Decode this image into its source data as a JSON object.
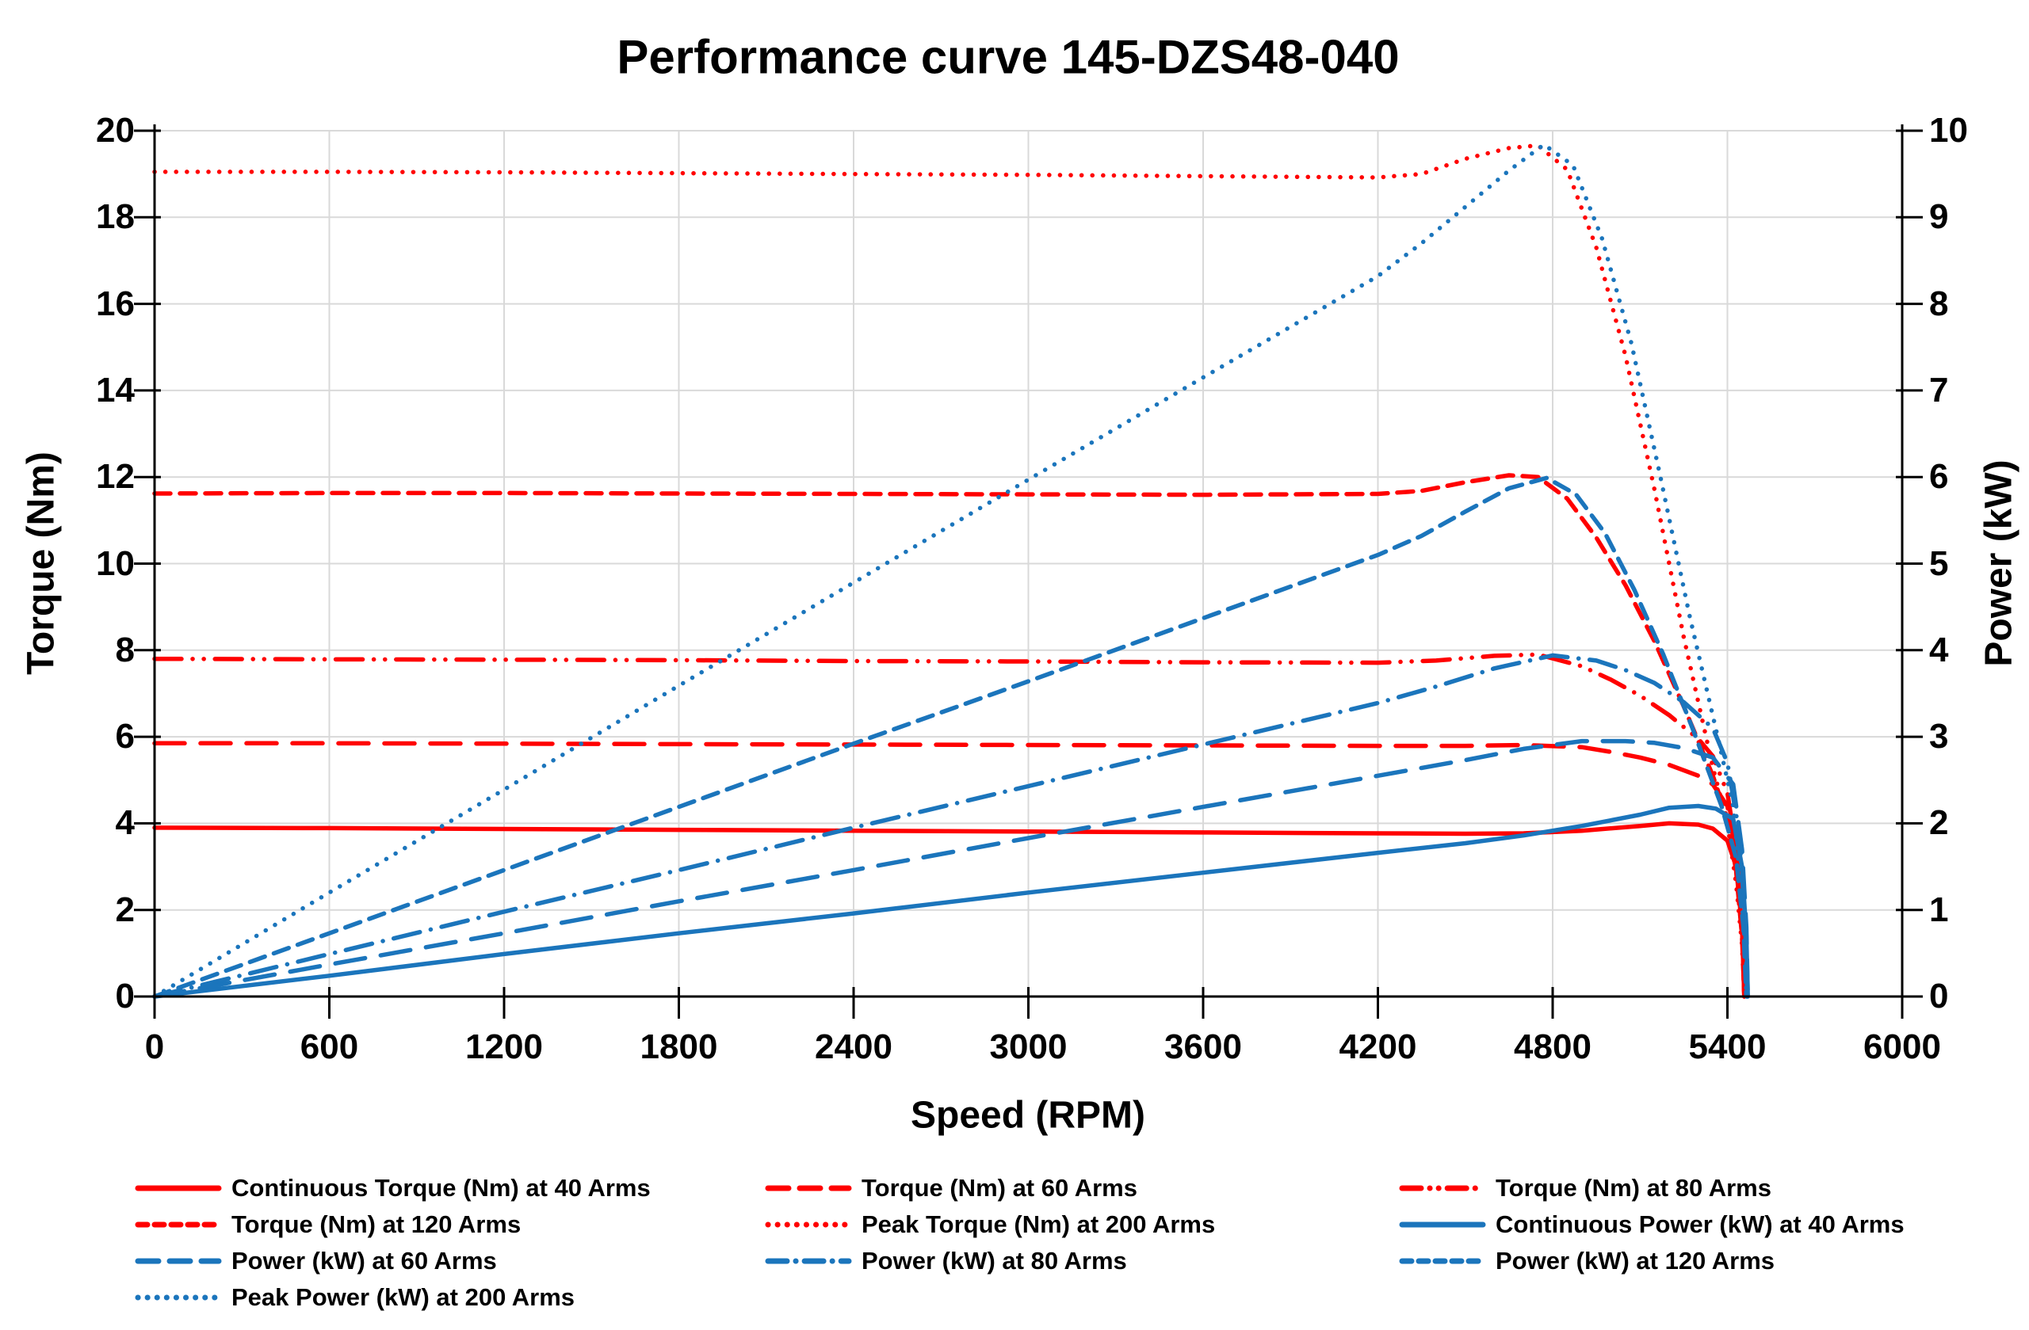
{
  "title": "Performance curve 145-DZS48-040",
  "colors": {
    "red": "#FF0000",
    "blue": "#1B75BC",
    "grid": "#D9D9D9",
    "axis": "#000000",
    "text": "#000000"
  },
  "axes": {
    "x": {
      "title": "Speed (RPM)",
      "min": 0,
      "max": 6000,
      "ticks": [
        "0",
        "600",
        "1200",
        "1800",
        "2400",
        "3000",
        "3600",
        "4200",
        "4800",
        "5400",
        "6000"
      ]
    },
    "y_left": {
      "title": "Torque (Nm)",
      "min": 0,
      "max": 20,
      "ticks": [
        "0",
        "2",
        "4",
        "6",
        "8",
        "10",
        "12",
        "14",
        "16",
        "18",
        "20"
      ]
    },
    "y_right": {
      "title": "Power (kW)",
      "min": 0,
      "max": 10,
      "ticks": [
        "0",
        "1",
        "2",
        "3",
        "4",
        "5",
        "6",
        "7",
        "8",
        "9",
        "10"
      ]
    }
  },
  "chart_data": {
    "type": "line",
    "title": "Performance curve 145-DZS48-040",
    "xlabel": "Speed (RPM)",
    "ylabel_left": "Torque (Nm)",
    "ylabel_right": "Power (kW)",
    "xlim": [
      0,
      6000
    ],
    "ylim_left": [
      0,
      20
    ],
    "ylim_right": [
      0,
      10
    ],
    "grid": true,
    "legend_position": "bottom",
    "series": [
      {
        "name": "Continuous Torque (Nm) at 40 Arms",
        "axis": "left",
        "color": "red",
        "dash": "solid",
        "points": [
          [
            0,
            3.9
          ],
          [
            600,
            3.89
          ],
          [
            1200,
            3.87
          ],
          [
            1800,
            3.85
          ],
          [
            2400,
            3.83
          ],
          [
            3000,
            3.81
          ],
          [
            3600,
            3.79
          ],
          [
            4200,
            3.77
          ],
          [
            4500,
            3.76
          ],
          [
            4700,
            3.77
          ],
          [
            4900,
            3.83
          ],
          [
            5100,
            3.94
          ],
          [
            5200,
            4.0
          ],
          [
            5300,
            3.97
          ],
          [
            5350,
            3.88
          ],
          [
            5400,
            3.6
          ],
          [
            5430,
            3.0
          ],
          [
            5450,
            1.6
          ],
          [
            5458,
            0
          ]
        ]
      },
      {
        "name": "Torque (Nm) at 60 Arms",
        "axis": "left",
        "color": "red",
        "dash": "long-dash",
        "points": [
          [
            0,
            5.85
          ],
          [
            600,
            5.85
          ],
          [
            1200,
            5.84
          ],
          [
            1800,
            5.83
          ],
          [
            2400,
            5.82
          ],
          [
            3000,
            5.81
          ],
          [
            3600,
            5.8
          ],
          [
            4200,
            5.79
          ],
          [
            4500,
            5.79
          ],
          [
            4700,
            5.81
          ],
          [
            4900,
            5.76
          ],
          [
            5000,
            5.65
          ],
          [
            5100,
            5.52
          ],
          [
            5200,
            5.35
          ],
          [
            5300,
            5.1
          ],
          [
            5350,
            4.9
          ],
          [
            5400,
            4.4
          ],
          [
            5430,
            3.3
          ],
          [
            5450,
            1.7
          ],
          [
            5458,
            0
          ]
        ]
      },
      {
        "name": "Torque (Nm) at 80 Arms",
        "axis": "left",
        "color": "red",
        "dash": "dash-dot-dot",
        "points": [
          [
            0,
            7.8
          ],
          [
            600,
            7.79
          ],
          [
            1200,
            7.78
          ],
          [
            1800,
            7.77
          ],
          [
            2400,
            7.75
          ],
          [
            3000,
            7.74
          ],
          [
            3600,
            7.72
          ],
          [
            4200,
            7.71
          ],
          [
            4400,
            7.76
          ],
          [
            4600,
            7.87
          ],
          [
            4750,
            7.9
          ],
          [
            4900,
            7.63
          ],
          [
            5000,
            7.32
          ],
          [
            5100,
            6.95
          ],
          [
            5200,
            6.5
          ],
          [
            5300,
            5.95
          ],
          [
            5350,
            5.55
          ],
          [
            5400,
            4.7
          ],
          [
            5430,
            3.4
          ],
          [
            5450,
            1.8
          ],
          [
            5458,
            0
          ]
        ]
      },
      {
        "name": "Torque (Nm) at 120 Arms",
        "axis": "left",
        "color": "red",
        "dash": "short-dash",
        "points": [
          [
            0,
            11.62
          ],
          [
            600,
            11.63
          ],
          [
            1200,
            11.63
          ],
          [
            1800,
            11.62
          ],
          [
            2400,
            11.61
          ],
          [
            3000,
            11.6
          ],
          [
            3600,
            11.59
          ],
          [
            4200,
            11.61
          ],
          [
            4350,
            11.68
          ],
          [
            4500,
            11.88
          ],
          [
            4650,
            12.04
          ],
          [
            4750,
            12.0
          ],
          [
            4850,
            11.5
          ],
          [
            4950,
            10.6
          ],
          [
            5050,
            9.5
          ],
          [
            5150,
            8.2
          ],
          [
            5250,
            6.7
          ],
          [
            5350,
            5.1
          ],
          [
            5400,
            4.1
          ],
          [
            5430,
            2.9
          ],
          [
            5450,
            1.4
          ],
          [
            5458,
            0
          ]
        ]
      },
      {
        "name": "Peak Torque (Nm) at 200 Arms",
        "axis": "left",
        "color": "red",
        "dash": "dot",
        "points": [
          [
            0,
            19.05
          ],
          [
            600,
            19.05
          ],
          [
            1200,
            19.04
          ],
          [
            1800,
            19.02
          ],
          [
            2400,
            19.0
          ],
          [
            3000,
            18.98
          ],
          [
            3600,
            18.95
          ],
          [
            4200,
            18.92
          ],
          [
            4350,
            19.0
          ],
          [
            4500,
            19.35
          ],
          [
            4650,
            19.6
          ],
          [
            4750,
            19.66
          ],
          [
            4850,
            19.1
          ],
          [
            4950,
            17.3
          ],
          [
            5050,
            14.8
          ],
          [
            5150,
            11.7
          ],
          [
            5250,
            8.3
          ],
          [
            5350,
            5.3
          ],
          [
            5400,
            4.0
          ],
          [
            5430,
            2.6
          ],
          [
            5450,
            1.2
          ],
          [
            5458,
            0
          ]
        ]
      },
      {
        "name": "Continuous Power (kW) at 40 Arms",
        "axis": "right",
        "color": "blue",
        "dash": "solid",
        "points": [
          [
            0,
            0
          ],
          [
            600,
            0.24
          ],
          [
            1200,
            0.49
          ],
          [
            1800,
            0.73
          ],
          [
            2400,
            0.96
          ],
          [
            3000,
            1.2
          ],
          [
            3600,
            1.43
          ],
          [
            4200,
            1.66
          ],
          [
            4500,
            1.77
          ],
          [
            4700,
            1.86
          ],
          [
            4900,
            1.97
          ],
          [
            5100,
            2.1
          ],
          [
            5200,
            2.18
          ],
          [
            5300,
            2.2
          ],
          [
            5360,
            2.17
          ],
          [
            5420,
            2.05
          ],
          [
            5450,
            1.5
          ],
          [
            5465,
            0.7
          ],
          [
            5470,
            0
          ]
        ]
      },
      {
        "name": "Power (kW) at 60 Arms",
        "axis": "right",
        "color": "blue",
        "dash": "long-dash",
        "points": [
          [
            0,
            0
          ],
          [
            600,
            0.37
          ],
          [
            1200,
            0.73
          ],
          [
            1800,
            1.1
          ],
          [
            2400,
            1.46
          ],
          [
            3000,
            1.83
          ],
          [
            3600,
            2.19
          ],
          [
            4200,
            2.55
          ],
          [
            4500,
            2.73
          ],
          [
            4700,
            2.86
          ],
          [
            4900,
            2.95
          ],
          [
            5050,
            2.95
          ],
          [
            5150,
            2.93
          ],
          [
            5250,
            2.87
          ],
          [
            5350,
            2.76
          ],
          [
            5420,
            2.45
          ],
          [
            5450,
            1.7
          ],
          [
            5465,
            0.8
          ],
          [
            5470,
            0
          ]
        ]
      },
      {
        "name": "Power (kW) at 80 Arms",
        "axis": "right",
        "color": "blue",
        "dash": "dash-dot",
        "points": [
          [
            0,
            0
          ],
          [
            600,
            0.49
          ],
          [
            1200,
            0.98
          ],
          [
            1800,
            1.46
          ],
          [
            2400,
            1.95
          ],
          [
            3000,
            2.43
          ],
          [
            3600,
            2.91
          ],
          [
            4200,
            3.39
          ],
          [
            4400,
            3.58
          ],
          [
            4600,
            3.79
          ],
          [
            4800,
            3.94
          ],
          [
            4950,
            3.88
          ],
          [
            5050,
            3.77
          ],
          [
            5150,
            3.62
          ],
          [
            5250,
            3.4
          ],
          [
            5350,
            3.1
          ],
          [
            5400,
            2.7
          ],
          [
            5440,
            1.9
          ],
          [
            5460,
            0.9
          ],
          [
            5468,
            0
          ]
        ]
      },
      {
        "name": "Power (kW) at 120 Arms",
        "axis": "right",
        "color": "blue",
        "dash": "short-dash",
        "points": [
          [
            0,
            0
          ],
          [
            600,
            0.73
          ],
          [
            1200,
            1.46
          ],
          [
            1800,
            2.19
          ],
          [
            2400,
            2.92
          ],
          [
            3000,
            3.64
          ],
          [
            3600,
            4.37
          ],
          [
            4200,
            5.1
          ],
          [
            4350,
            5.32
          ],
          [
            4500,
            5.6
          ],
          [
            4650,
            5.87
          ],
          [
            4780,
            5.99
          ],
          [
            4880,
            5.8
          ],
          [
            4980,
            5.35
          ],
          [
            5080,
            4.7
          ],
          [
            5180,
            3.95
          ],
          [
            5280,
            3.1
          ],
          [
            5380,
            2.2
          ],
          [
            5430,
            1.6
          ],
          [
            5455,
            0.8
          ],
          [
            5465,
            0
          ]
        ]
      },
      {
        "name": "Peak Power (kW) at 200 Arms",
        "axis": "right",
        "color": "blue",
        "dash": "dot",
        "points": [
          [
            0,
            0
          ],
          [
            600,
            1.2
          ],
          [
            1200,
            2.39
          ],
          [
            1800,
            3.59
          ],
          [
            2400,
            4.78
          ],
          [
            3000,
            5.97
          ],
          [
            3600,
            7.15
          ],
          [
            4200,
            8.32
          ],
          [
            4350,
            8.7
          ],
          [
            4500,
            9.12
          ],
          [
            4650,
            9.54
          ],
          [
            4770,
            9.84
          ],
          [
            4870,
            9.6
          ],
          [
            4970,
            8.75
          ],
          [
            5070,
            7.55
          ],
          [
            5170,
            6.0
          ],
          [
            5270,
            4.4
          ],
          [
            5370,
            2.95
          ],
          [
            5420,
            2.2
          ],
          [
            5445,
            1.3
          ],
          [
            5460,
            0.6
          ],
          [
            5465,
            0
          ]
        ]
      }
    ]
  }
}
